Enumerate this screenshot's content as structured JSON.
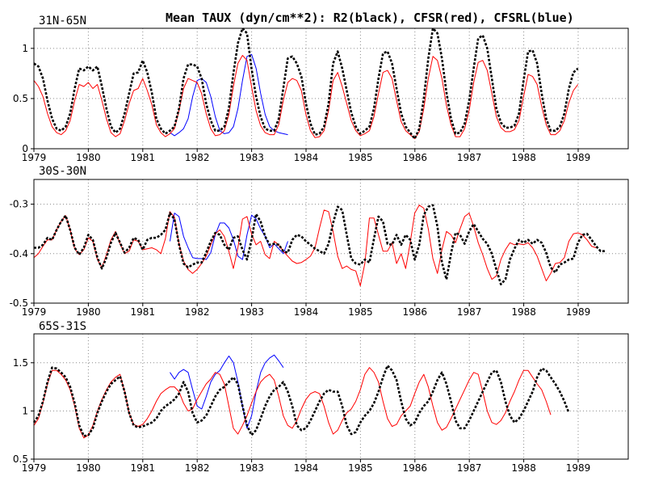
{
  "figure_title": "Mean TAUX (dyn/cm**2): R2(black), CFSR(red), CFSRL(blue)",
  "colors": {
    "R2": "#000000",
    "CFSR": "#ff0000",
    "CFSRL": "#0000ff",
    "grid": "#8a8a8a"
  },
  "chart_data": [
    {
      "type": "line",
      "title": "31N-65N",
      "xlabel": "",
      "ylabel": "",
      "xlim": [
        1979.0,
        1989.92
      ],
      "ylim": [
        0,
        1.2
      ],
      "xticks": [
        "1979",
        "1980",
        "1981",
        "1982",
        "1983",
        "1984",
        "1985",
        "1986",
        "1987",
        "1988",
        "1989"
      ],
      "yticks": [
        0,
        0.5,
        1
      ],
      "yticklabels": [
        "0",
        "0.5",
        "1"
      ],
      "grid": true,
      "series": [
        {
          "name": "R2",
          "style": "dashed",
          "x_start": 1979.0,
          "x_step": 0.0833,
          "values": [
            0.85,
            0.82,
            0.7,
            0.48,
            0.3,
            0.2,
            0.18,
            0.22,
            0.35,
            0.6,
            0.8,
            0.78,
            0.82,
            0.78,
            0.82,
            0.62,
            0.4,
            0.22,
            0.16,
            0.2,
            0.35,
            0.55,
            0.75,
            0.76,
            0.88,
            0.76,
            0.56,
            0.3,
            0.2,
            0.15,
            0.18,
            0.22,
            0.4,
            0.7,
            0.84,
            0.84,
            0.82,
            0.7,
            0.45,
            0.28,
            0.18,
            0.18,
            0.22,
            0.4,
            0.75,
            1.05,
            1.2,
            1.15,
            0.8,
            0.52,
            0.32,
            0.2,
            0.18,
            0.18,
            0.3,
            0.6,
            0.9,
            0.92,
            0.85,
            0.72,
            0.45,
            0.25,
            0.14,
            0.15,
            0.22,
            0.45,
            0.85,
            0.97,
            0.8,
            0.58,
            0.36,
            0.22,
            0.15,
            0.18,
            0.22,
            0.4,
            0.7,
            0.95,
            0.97,
            0.85,
            0.6,
            0.35,
            0.22,
            0.16,
            0.1,
            0.2,
            0.5,
            0.9,
            1.2,
            1.15,
            0.9,
            0.56,
            0.3,
            0.15,
            0.16,
            0.25,
            0.48,
            0.8,
            1.1,
            1.13,
            1.0,
            0.7,
            0.4,
            0.26,
            0.21,
            0.21,
            0.23,
            0.35,
            0.68,
            0.97,
            0.98,
            0.85,
            0.55,
            0.3,
            0.18,
            0.18,
            0.22,
            0.35,
            0.6,
            0.76,
            0.8
          ]
        },
        {
          "name": "CFSR",
          "style": "solid",
          "x_start": 1979.0,
          "x_step": 0.0833,
          "values": [
            0.68,
            0.62,
            0.52,
            0.35,
            0.22,
            0.16,
            0.14,
            0.18,
            0.28,
            0.48,
            0.64,
            0.62,
            0.66,
            0.6,
            0.64,
            0.48,
            0.3,
            0.16,
            0.12,
            0.15,
            0.28,
            0.45,
            0.58,
            0.6,
            0.7,
            0.58,
            0.44,
            0.24,
            0.16,
            0.12,
            0.15,
            0.2,
            0.38,
            0.6,
            0.7,
            0.68,
            0.66,
            0.55,
            0.35,
            0.2,
            0.13,
            0.14,
            0.18,
            0.34,
            0.62,
            0.85,
            0.93,
            0.88,
            0.62,
            0.38,
            0.23,
            0.16,
            0.14,
            0.14,
            0.24,
            0.48,
            0.66,
            0.7,
            0.68,
            0.58,
            0.34,
            0.18,
            0.11,
            0.12,
            0.18,
            0.38,
            0.68,
            0.76,
            0.62,
            0.45,
            0.28,
            0.18,
            0.13,
            0.15,
            0.18,
            0.32,
            0.55,
            0.76,
            0.78,
            0.7,
            0.48,
            0.27,
            0.18,
            0.14,
            0.1,
            0.17,
            0.4,
            0.7,
            0.92,
            0.88,
            0.7,
            0.43,
            0.24,
            0.12,
            0.12,
            0.2,
            0.38,
            0.66,
            0.86,
            0.88,
            0.78,
            0.55,
            0.32,
            0.21,
            0.17,
            0.17,
            0.19,
            0.28,
            0.52,
            0.74,
            0.72,
            0.64,
            0.42,
            0.24,
            0.14,
            0.14,
            0.18,
            0.28,
            0.46,
            0.58,
            0.64
          ]
        },
        {
          "name": "CFSRL",
          "style": "solid",
          "x_start": 1981.5,
          "x_step": 0.0833,
          "values": [
            0.16,
            0.13,
            0.16,
            0.2,
            0.3,
            0.52,
            0.68,
            0.7,
            0.66,
            0.52,
            0.32,
            0.18,
            0.15,
            0.16,
            0.22,
            0.4,
            0.68,
            0.92,
            0.94,
            0.8,
            0.55,
            0.34,
            0.22,
            0.18,
            0.16,
            0.15,
            0.14
          ]
        }
      ]
    },
    {
      "type": "line",
      "title": "30S-30N",
      "xlabel": "",
      "ylabel": "",
      "xlim": [
        1979.0,
        1989.92
      ],
      "ylim": [
        -0.5,
        -0.25
      ],
      "xticks": [
        "1979",
        "1980",
        "1981",
        "1982",
        "1983",
        "1984",
        "1985",
        "1986",
        "1987",
        "1988",
        "1989"
      ],
      "yticks": [
        -0.5,
        -0.4,
        -0.3
      ],
      "yticklabels": [
        "-0.5",
        "-0.4",
        "-0.3"
      ],
      "grid": true,
      "series": [
        {
          "name": "R2",
          "style": "dashed",
          "x_start": 1979.0,
          "x_step": 0.0833,
          "values": [
            -0.388,
            -0.388,
            -0.382,
            -0.368,
            -0.372,
            -0.352,
            -0.335,
            -0.323,
            -0.352,
            -0.388,
            -0.402,
            -0.388,
            -0.362,
            -0.372,
            -0.408,
            -0.43,
            -0.408,
            -0.378,
            -0.358,
            -0.378,
            -0.398,
            -0.388,
            -0.368,
            -0.372,
            -0.392,
            -0.372,
            -0.368,
            -0.368,
            -0.362,
            -0.352,
            -0.318,
            -0.33,
            -0.382,
            -0.42,
            -0.428,
            -0.422,
            -0.418,
            -0.418,
            -0.398,
            -0.375,
            -0.358,
            -0.362,
            -0.382,
            -0.392,
            -0.368,
            -0.365,
            -0.392,
            -0.412,
            -0.372,
            -0.32,
            -0.335,
            -0.365,
            -0.382,
            -0.38,
            -0.382,
            -0.395,
            -0.398,
            -0.372,
            -0.362,
            -0.365,
            -0.375,
            -0.382,
            -0.39,
            -0.395,
            -0.4,
            -0.38,
            -0.338,
            -0.305,
            -0.312,
            -0.362,
            -0.41,
            -0.42,
            -0.422,
            -0.412,
            -0.418,
            -0.37,
            -0.325,
            -0.335,
            -0.38,
            -0.382,
            -0.362,
            -0.382,
            -0.362,
            -0.372,
            -0.412,
            -0.382,
            -0.322,
            -0.305,
            -0.302,
            -0.345,
            -0.418,
            -0.452,
            -0.4,
            -0.358,
            -0.362,
            -0.38,
            -0.355,
            -0.34,
            -0.355,
            -0.37,
            -0.38,
            -0.4,
            -0.432,
            -0.462,
            -0.452,
            -0.412,
            -0.39,
            -0.372,
            -0.378,
            -0.372,
            -0.38,
            -0.372,
            -0.378,
            -0.398,
            -0.428,
            -0.438,
            -0.422,
            -0.418,
            -0.412,
            -0.41,
            -0.378,
            -0.362,
            -0.36,
            -0.372,
            -0.385,
            -0.395,
            -0.395
          ]
        },
        {
          "name": "CFSR",
          "style": "solid",
          "x_start": 1979.0,
          "x_step": 0.0833,
          "values": [
            -0.408,
            -0.4,
            -0.385,
            -0.372,
            -0.372,
            -0.352,
            -0.335,
            -0.323,
            -0.352,
            -0.39,
            -0.402,
            -0.392,
            -0.368,
            -0.375,
            -0.412,
            -0.428,
            -0.402,
            -0.372,
            -0.355,
            -0.38,
            -0.4,
            -0.395,
            -0.372,
            -0.375,
            -0.392,
            -0.39,
            -0.388,
            -0.392,
            -0.4,
            -0.37,
            -0.315,
            -0.326,
            -0.38,
            -0.415,
            -0.432,
            -0.44,
            -0.432,
            -0.42,
            -0.405,
            -0.382,
            -0.36,
            -0.352,
            -0.365,
            -0.395,
            -0.43,
            -0.388,
            -0.33,
            -0.325,
            -0.36,
            -0.382,
            -0.375,
            -0.402,
            -0.41,
            -0.375,
            -0.382,
            -0.395,
            -0.405,
            -0.415,
            -0.42,
            -0.418,
            -0.412,
            -0.405,
            -0.388,
            -0.348,
            -0.312,
            -0.315,
            -0.355,
            -0.405,
            -0.43,
            -0.425,
            -0.432,
            -0.435,
            -0.465,
            -0.42,
            -0.328,
            -0.328,
            -0.362,
            -0.395,
            -0.395,
            -0.378,
            -0.42,
            -0.4,
            -0.43,
            -0.378,
            -0.318,
            -0.302,
            -0.308,
            -0.35,
            -0.41,
            -0.44,
            -0.392,
            -0.355,
            -0.362,
            -0.378,
            -0.35,
            -0.325,
            -0.318,
            -0.345,
            -0.378,
            -0.402,
            -0.43,
            -0.452,
            -0.445,
            -0.412,
            -0.392,
            -0.378,
            -0.382,
            -0.38,
            -0.382,
            -0.378,
            -0.388,
            -0.405,
            -0.43,
            -0.455,
            -0.44,
            -0.42,
            -0.418,
            -0.408,
            -0.375,
            -0.36,
            -0.358,
            -0.362,
            -0.372,
            -0.385,
            -0.388
          ]
        },
        {
          "name": "CFSRL",
          "style": "solid",
          "x_start": 1981.5,
          "x_step": 0.0833,
          "values": [
            -0.375,
            -0.318,
            -0.325,
            -0.365,
            -0.388,
            -0.408,
            -0.41,
            -0.41,
            -0.412,
            -0.398,
            -0.362,
            -0.338,
            -0.338,
            -0.348,
            -0.372,
            -0.405,
            -0.412,
            -0.362,
            -0.322,
            -0.33,
            -0.35,
            -0.365,
            -0.388,
            -0.38,
            -0.39,
            -0.4,
            -0.375
          ]
        }
      ]
    },
    {
      "type": "line",
      "title": "65S-31S",
      "xlabel": "",
      "ylabel": "",
      "xlim": [
        1979.0,
        1989.92
      ],
      "ylim": [
        0.5,
        1.8
      ],
      "xticks": [
        "1979",
        "1980",
        "1981",
        "1982",
        "1983",
        "1984",
        "1985",
        "1986",
        "1987",
        "1988",
        "1989"
      ],
      "yticks": [
        0.5,
        1,
        1.5
      ],
      "yticklabels": [
        "0.5",
        "1",
        "1.5"
      ],
      "grid": true,
      "series": [
        {
          "name": "R2",
          "style": "dashed",
          "x_start": 1979.0,
          "x_step": 0.0833,
          "values": [
            0.88,
            0.95,
            1.1,
            1.3,
            1.45,
            1.44,
            1.4,
            1.35,
            1.25,
            1.08,
            0.85,
            0.74,
            0.75,
            0.82,
            0.98,
            1.1,
            1.2,
            1.28,
            1.32,
            1.36,
            1.2,
            0.98,
            0.85,
            0.83,
            0.84,
            0.86,
            0.88,
            0.92,
            1.0,
            1.05,
            1.08,
            1.12,
            1.18,
            1.3,
            1.2,
            0.98,
            0.88,
            0.9,
            0.95,
            1.05,
            1.15,
            1.22,
            1.25,
            1.3,
            1.35,
            1.28,
            1.05,
            0.85,
            0.75,
            0.8,
            0.92,
            1.05,
            1.15,
            1.22,
            1.25,
            1.3,
            1.2,
            1.05,
            0.85,
            0.8,
            0.82,
            0.9,
            1.0,
            1.1,
            1.18,
            1.22,
            1.2,
            1.2,
            1.05,
            0.85,
            0.76,
            0.78,
            0.88,
            0.95,
            1.0,
            1.08,
            1.2,
            1.35,
            1.47,
            1.42,
            1.32,
            1.1,
            0.92,
            0.85,
            0.88,
            0.98,
            1.05,
            1.1,
            1.2,
            1.32,
            1.4,
            1.28,
            1.1,
            0.9,
            0.82,
            0.82,
            0.9,
            1.0,
            1.1,
            1.2,
            1.3,
            1.4,
            1.42,
            1.3,
            1.1,
            0.95,
            0.88,
            0.92,
            1.0,
            1.1,
            1.2,
            1.35,
            1.44,
            1.42,
            1.35,
            1.28,
            1.2,
            1.1,
            0.98
          ]
        },
        {
          "name": "CFSR",
          "style": "solid",
          "x_start": 1979.0,
          "x_step": 0.0833,
          "values": [
            0.85,
            0.92,
            1.08,
            1.28,
            1.42,
            1.42,
            1.38,
            1.32,
            1.22,
            1.05,
            0.82,
            0.72,
            0.75,
            0.85,
            1.0,
            1.12,
            1.22,
            1.3,
            1.35,
            1.38,
            1.2,
            0.98,
            0.86,
            0.84,
            0.86,
            0.92,
            1.0,
            1.1,
            1.18,
            1.22,
            1.25,
            1.25,
            1.2,
            1.08,
            1.0,
            1.02,
            1.12,
            1.2,
            1.28,
            1.33,
            1.4,
            1.38,
            1.28,
            1.05,
            0.82,
            0.76,
            0.85,
            0.95,
            1.08,
            1.2,
            1.3,
            1.35,
            1.38,
            1.32,
            1.15,
            0.95,
            0.85,
            0.82,
            0.9,
            1.02,
            1.12,
            1.18,
            1.2,
            1.18,
            1.05,
            0.88,
            0.76,
            0.8,
            0.9,
            0.98,
            1.02,
            1.1,
            1.22,
            1.38,
            1.45,
            1.4,
            1.3,
            1.1,
            0.92,
            0.84,
            0.86,
            0.95,
            1.0,
            1.05,
            1.18,
            1.3,
            1.38,
            1.25,
            1.05,
            0.88,
            0.8,
            0.83,
            0.92,
            1.02,
            1.12,
            1.22,
            1.32,
            1.4,
            1.38,
            1.2,
            1.0,
            0.88,
            0.86,
            0.9,
            0.98,
            1.1,
            1.2,
            1.32,
            1.42,
            1.42,
            1.35,
            1.28,
            1.22,
            1.1,
            0.96
          ]
        },
        {
          "name": "CFSRL",
          "style": "solid",
          "x_start": 1981.5,
          "x_step": 0.0833,
          "values": [
            1.4,
            1.33,
            1.4,
            1.43,
            1.4,
            1.22,
            1.05,
            1.02,
            1.15,
            1.3,
            1.38,
            1.42,
            1.5,
            1.57,
            1.5,
            1.3,
            1.05,
            0.82,
            0.95,
            1.2,
            1.4,
            1.5,
            1.55,
            1.58,
            1.52,
            1.45
          ]
        }
      ]
    }
  ]
}
